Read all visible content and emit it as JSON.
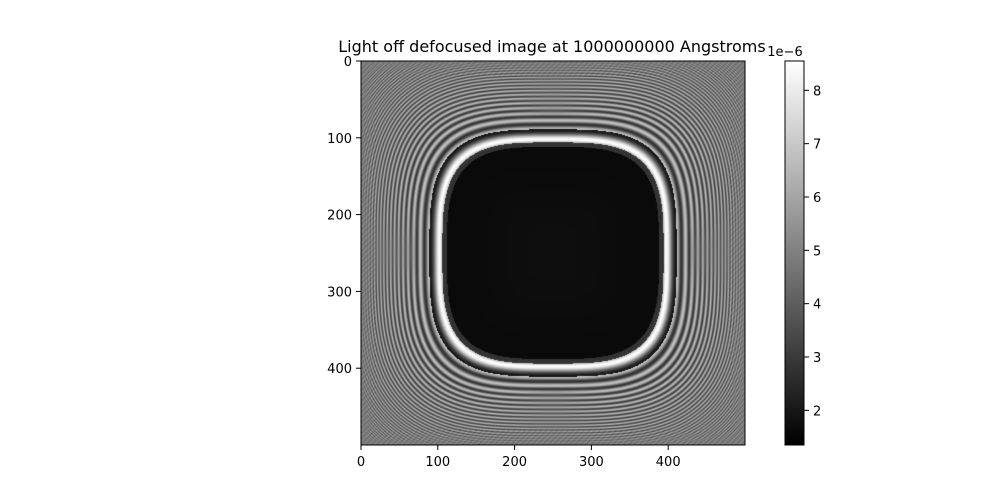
{
  "chart_data": {
    "type": "heatmap",
    "title": "Light off defocused image at 1000000000 Angstroms",
    "xlabel": "",
    "ylabel": "",
    "colormap": "gray",
    "image_shape": [
      500,
      500
    ],
    "xlim": [
      0,
      500
    ],
    "ylim": [
      500,
      0
    ],
    "x_ticks": [
      0,
      100,
      200,
      300,
      400
    ],
    "y_ticks": [
      0,
      100,
      200,
      300,
      400
    ],
    "x_tick_labels": [
      "0",
      "100",
      "200",
      "300",
      "400"
    ],
    "y_tick_labels": [
      "0",
      "100",
      "200",
      "300",
      "400"
    ],
    "colorbar": {
      "min": 1.35,
      "max": 8.55,
      "ticks": [
        2,
        3,
        4,
        5,
        6,
        7,
        8
      ],
      "tick_labels": [
        "2",
        "3",
        "4",
        "5",
        "6",
        "7",
        "8"
      ],
      "offset_label": "1e−6"
    },
    "features": {
      "center": [
        250,
        250
      ],
      "dark_region_value": 1.6,
      "bright_ring_value": 8.5,
      "background_value": 4.8,
      "description_values": "dark interior, bright rounded-square ring, concentric fringes outside"
    },
    "grid": false,
    "legend": "none"
  }
}
